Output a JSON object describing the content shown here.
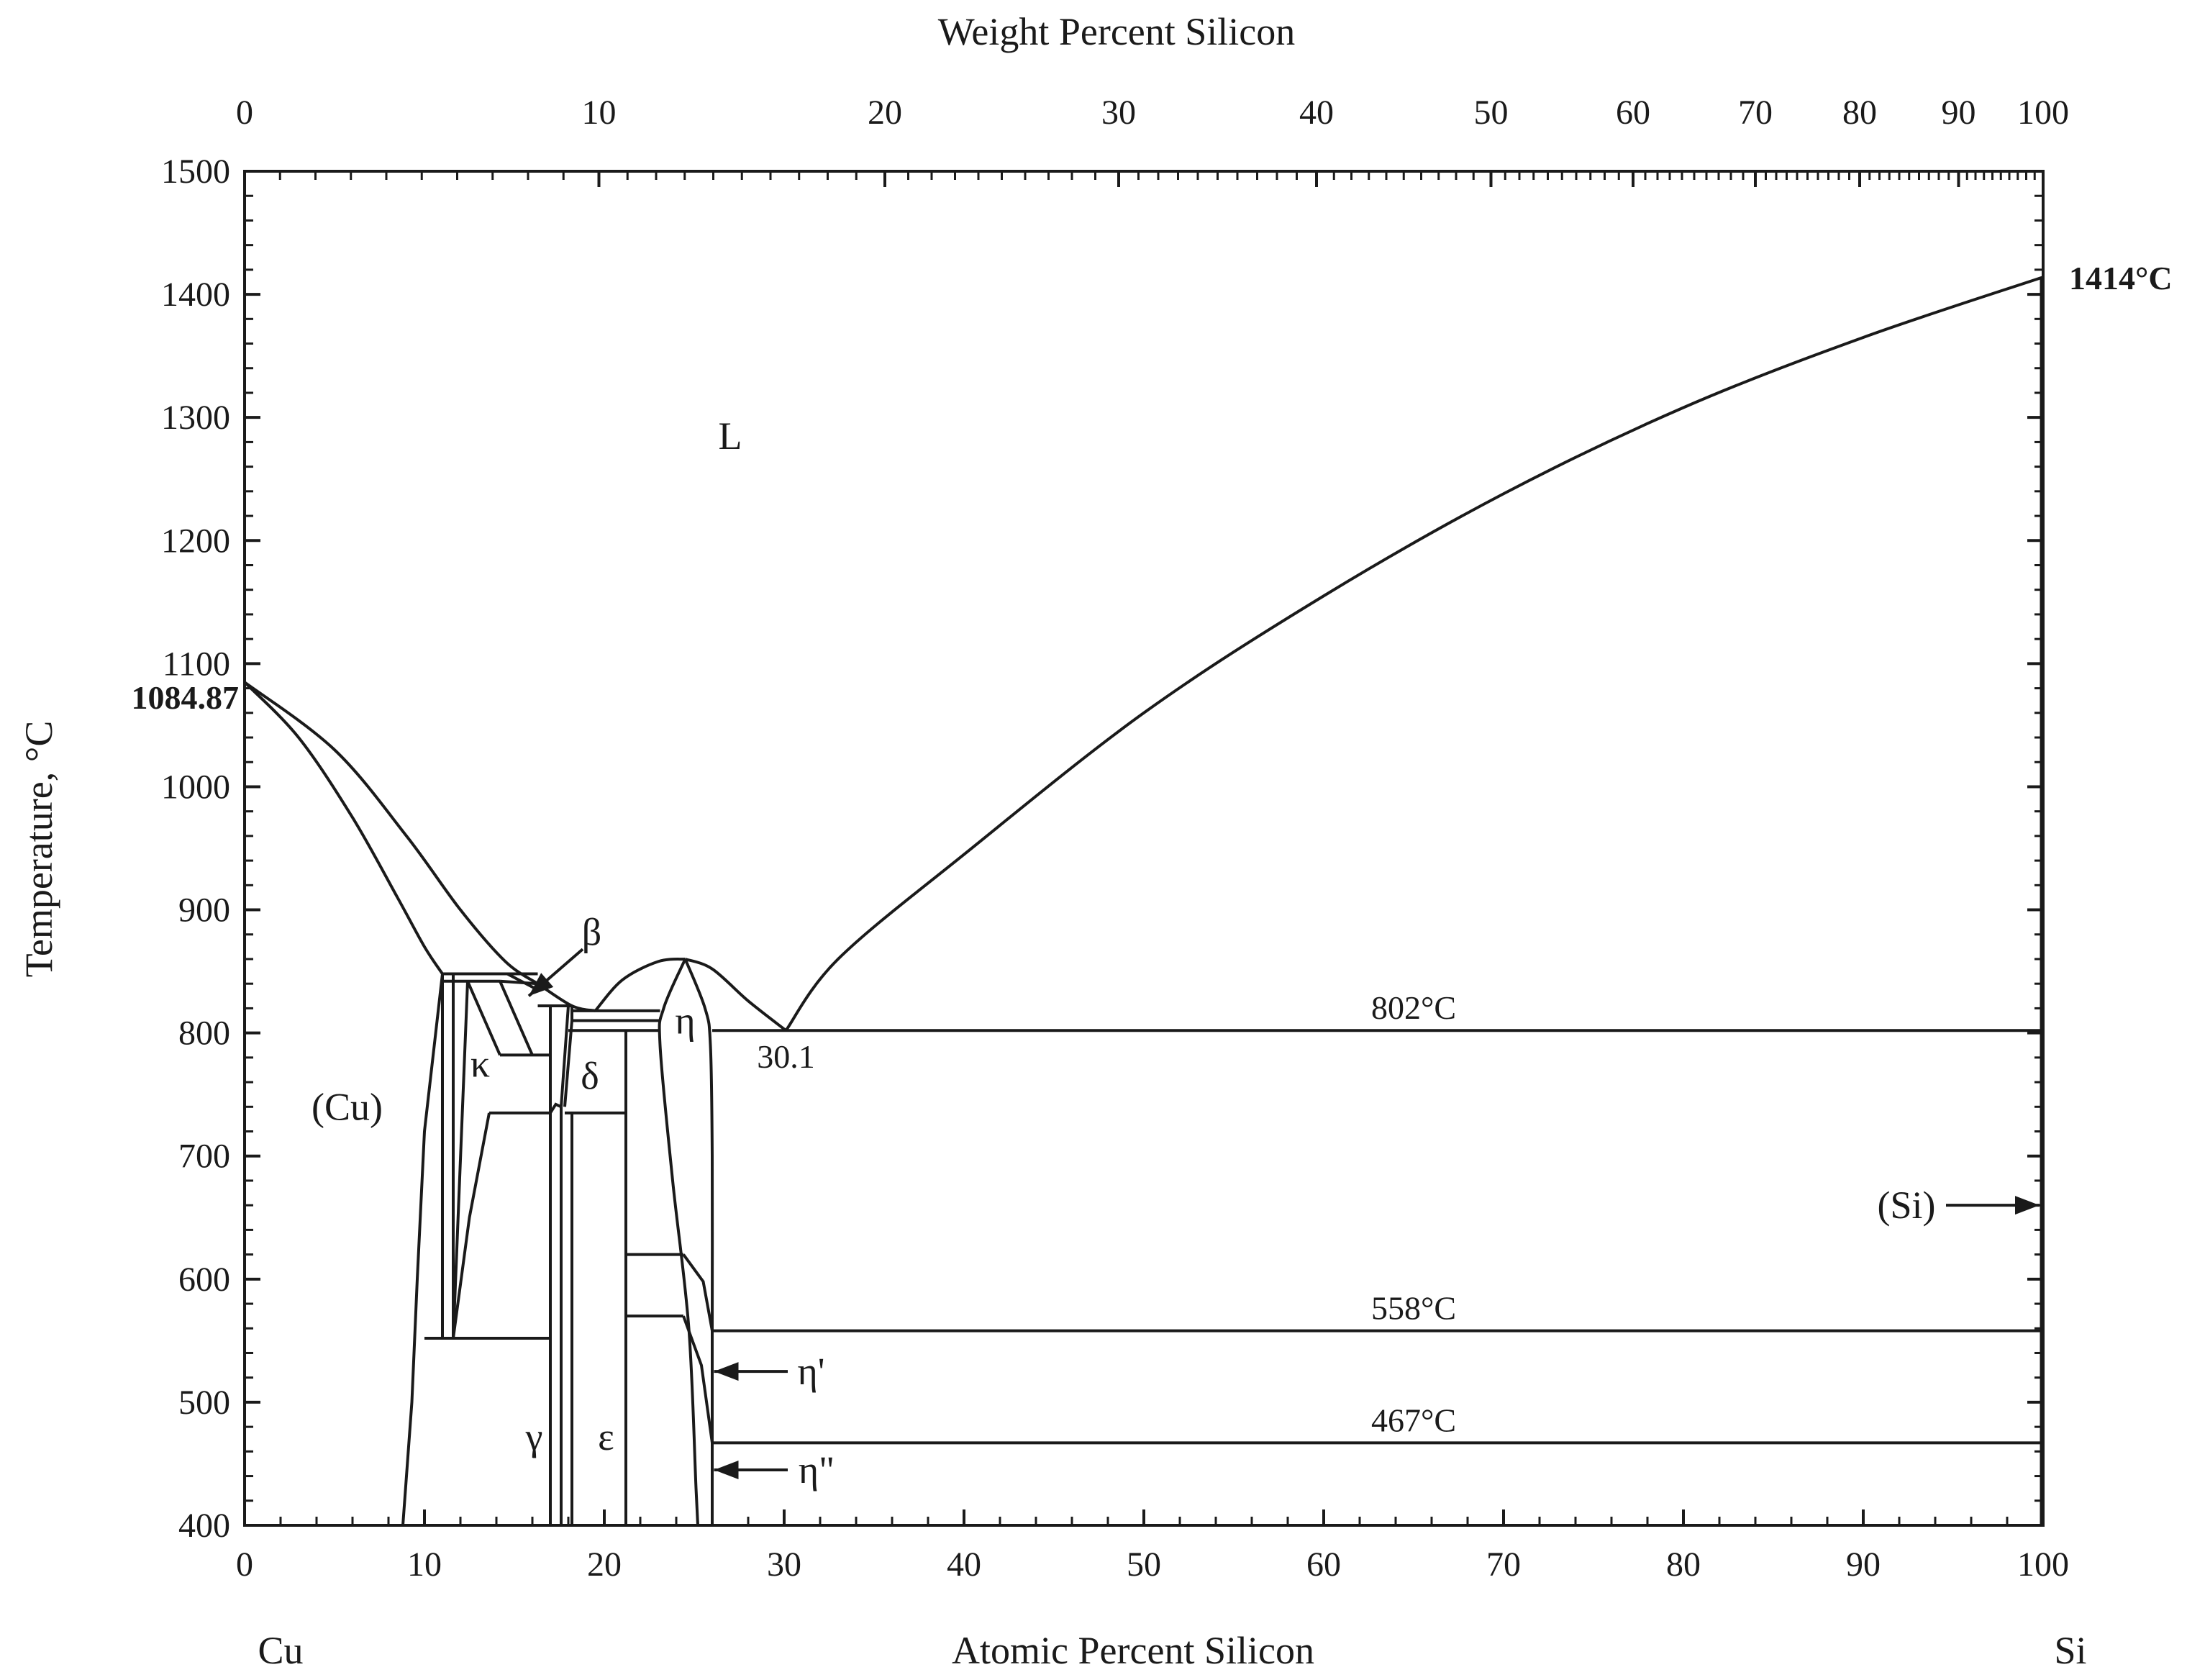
{
  "chart_data": {
    "type": "phase-diagram",
    "system": "Cu-Si",
    "colors": {
      "line": "#1a1a1a",
      "background": "#ffffff"
    },
    "axes": {
      "x_bottom": {
        "label": "Atomic Percent Silicon",
        "range": [
          0,
          100
        ],
        "ticks": [
          "0",
          "10",
          "20",
          "30",
          "40",
          "50",
          "60",
          "70",
          "80",
          "90",
          "100"
        ]
      },
      "x_top": {
        "label": "Weight Percent Silicon",
        "ticks": [
          {
            "label": "0",
            "at_pct": 0
          },
          {
            "label": "10",
            "at_pct": 19.7
          },
          {
            "label": "20",
            "at_pct": 35.6
          },
          {
            "label": "30",
            "at_pct": 48.6
          },
          {
            "label": "40",
            "at_pct": 59.6
          },
          {
            "label": "50",
            "at_pct": 69.3
          },
          {
            "label": "60",
            "at_pct": 77.2
          },
          {
            "label": "70",
            "at_pct": 84.0
          },
          {
            "label": "80",
            "at_pct": 89.8
          },
          {
            "label": "90",
            "at_pct": 95.3
          },
          {
            "label": "100",
            "at_pct": 100
          }
        ]
      },
      "y": {
        "label": "Temperature, °C",
        "range": [
          400,
          1500
        ],
        "ticks": [
          "400",
          "500",
          "600",
          "700",
          "800",
          "900",
          "1000",
          "1100",
          "1200",
          "1300",
          "1400",
          "1500"
        ]
      }
    },
    "element_labels": {
      "left": "Cu",
      "right": "Si"
    },
    "special_points": [
      {
        "label": "1084.87",
        "x": 0,
        "y": 1084.87
      },
      {
        "label": "1414°C",
        "x": 100,
        "y": 1414
      }
    ],
    "isotherms": [
      {
        "label": "802°C",
        "y": 802,
        "x_range": [
          26,
          100
        ]
      },
      {
        "label": "558°C",
        "y": 558,
        "x_range": [
          26,
          100
        ]
      },
      {
        "label": "467°C",
        "y": 467,
        "x_range": [
          26,
          100
        ]
      }
    ],
    "eutectic": {
      "label": "30.1",
      "x": 30.1,
      "y": 802
    },
    "phases": [
      {
        "label": "L",
        "x": 27,
        "y": 1285
      },
      {
        "label": "(Cu)",
        "x": 5.7,
        "y": 740
      },
      {
        "label": "κ",
        "x": 13.1,
        "y": 775
      },
      {
        "label": "β",
        "x": 19.3,
        "y": 882
      },
      {
        "label": "δ",
        "x": 19.2,
        "y": 765
      },
      {
        "label": "η",
        "x": 24.5,
        "y": 810
      },
      {
        "label": "γ",
        "x": 16.1,
        "y": 472
      },
      {
        "label": "ε",
        "x": 20.1,
        "y": 472
      },
      {
        "label": "η'",
        "x": 31.5,
        "y": 525
      },
      {
        "label": "η\"",
        "x": 31.8,
        "y": 445
      },
      {
        "label": "(Si)",
        "x": 92.4,
        "y": 660
      }
    ],
    "curves": [
      {
        "name": "liquidus-cu",
        "points": [
          [
            0,
            1084.87
          ],
          [
            5,
            1030
          ],
          [
            9,
            960
          ],
          [
            12,
            900
          ],
          [
            14.5,
            858
          ],
          [
            16.3,
            840
          ]
        ]
      },
      {
        "name": "solidus-cu",
        "points": [
          [
            0,
            1084.87
          ],
          [
            3,
            1040
          ],
          [
            6,
            975
          ],
          [
            8.5,
            910
          ],
          [
            10,
            870
          ],
          [
            11,
            848
          ]
        ]
      },
      {
        "name": "liquidus-beta",
        "points": [
          [
            16.3,
            840
          ],
          [
            18.2,
            822
          ],
          [
            19.5,
            818
          ]
        ]
      },
      {
        "name": "liquidus-eta-left",
        "points": [
          [
            19.5,
            818
          ],
          [
            21,
            843
          ],
          [
            23,
            858
          ],
          [
            24.5,
            860
          ]
        ]
      },
      {
        "name": "liquidus-eta-right",
        "points": [
          [
            24.5,
            860
          ],
          [
            26,
            852
          ],
          [
            28,
            826
          ],
          [
            30.1,
            802
          ]
        ]
      },
      {
        "name": "liquidus-si",
        "points": [
          [
            30.1,
            802
          ],
          [
            33,
            860
          ],
          [
            40,
            945
          ],
          [
            50,
            1060
          ],
          [
            60,
            1155
          ],
          [
            70,
            1238
          ],
          [
            80,
            1308
          ],
          [
            90,
            1365
          ],
          [
            100,
            1414
          ]
        ]
      },
      {
        "name": "eta-dome-left",
        "points": [
          [
            24.5,
            860
          ],
          [
            23.3,
            820
          ],
          [
            23.1,
            790
          ],
          [
            23.8,
            680
          ],
          [
            24.7,
            560
          ],
          [
            25.1,
            430
          ],
          [
            25.2,
            400
          ]
        ]
      },
      {
        "name": "eta-dome-right",
        "points": [
          [
            24.5,
            860
          ],
          [
            25.6,
            820
          ],
          [
            25.9,
            790
          ],
          [
            26.0,
            700
          ],
          [
            26.0,
            558
          ],
          [
            26.0,
            467
          ],
          [
            26.0,
            400
          ]
        ]
      }
    ]
  }
}
